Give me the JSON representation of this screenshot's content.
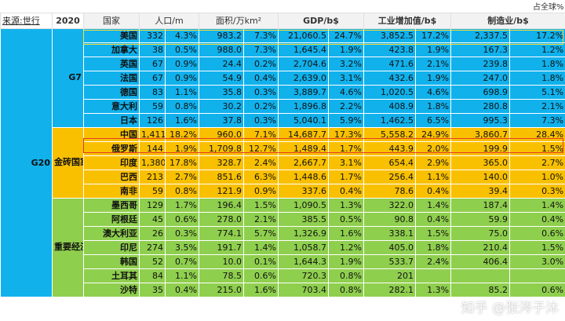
{
  "header": {
    "share_note": "占全球%",
    "source": "来源:世行",
    "year": "2020",
    "col_country": "国家",
    "col_pop": "人口/m",
    "col_area": "面积/万km²",
    "col_gdp": "GDP/b$",
    "col_industry": "工业增加值/b$",
    "col_mfg": "制造业/b$"
  },
  "groups": {
    "g20": "G20",
    "g7": "G7",
    "brics": "金砖国家",
    "major": "重要经济体"
  },
  "rows": [
    {
      "country": "美国",
      "pop": "332",
      "pop_pct": "4.3%",
      "area": "983.2",
      "area_pct": "7.3%",
      "gdp": "21,060.5",
      "gdp_pct": "24.7%",
      "ind": "3,852.5",
      "ind_pct": "17.2%",
      "mfg": "2,337.5",
      "mfg_pct": "17.2%"
    },
    {
      "country": "加拿大",
      "pop": "38",
      "pop_pct": "0.5%",
      "area": "988.0",
      "area_pct": "7.3%",
      "gdp": "1,645.4",
      "gdp_pct": "1.9%",
      "ind": "423.8",
      "ind_pct": "1.9%",
      "mfg": "167.3",
      "mfg_pct": "1.2%"
    },
    {
      "country": "英国",
      "pop": "67",
      "pop_pct": "0.9%",
      "area": "24.4",
      "area_pct": "0.2%",
      "gdp": "2,704.6",
      "gdp_pct": "3.2%",
      "ind": "471.6",
      "ind_pct": "2.1%",
      "mfg": "239.8",
      "mfg_pct": "1.8%"
    },
    {
      "country": "法国",
      "pop": "67",
      "pop_pct": "0.9%",
      "area": "54.9",
      "area_pct": "0.4%",
      "gdp": "2,639.0",
      "gdp_pct": "3.1%",
      "ind": "432.6",
      "ind_pct": "1.9%",
      "mfg": "247.0",
      "mfg_pct": "1.8%"
    },
    {
      "country": "德国",
      "pop": "83",
      "pop_pct": "1.1%",
      "area": "35.8",
      "area_pct": "0.3%",
      "gdp": "3,889.7",
      "gdp_pct": "4.6%",
      "ind": "1,020.5",
      "ind_pct": "4.6%",
      "mfg": "698.9",
      "mfg_pct": "5.1%"
    },
    {
      "country": "意大利",
      "pop": "59",
      "pop_pct": "0.8%",
      "area": "30.2",
      "area_pct": "0.2%",
      "gdp": "1,896.8",
      "gdp_pct": "2.2%",
      "ind": "408.9",
      "ind_pct": "1.8%",
      "mfg": "280.8",
      "mfg_pct": "2.1%"
    },
    {
      "country": "日本",
      "pop": "126",
      "pop_pct": "1.6%",
      "area": "37.8",
      "area_pct": "0.3%",
      "gdp": "5,040.1",
      "gdp_pct": "5.9%",
      "ind": "1,462.5",
      "ind_pct": "6.5%",
      "mfg": "995.3",
      "mfg_pct": "7.3%"
    },
    {
      "country": "中国",
      "pop": "1,411",
      "pop_pct": "18.2%",
      "area": "960.0",
      "area_pct": "7.1%",
      "gdp": "14,687.7",
      "gdp_pct": "17.3%",
      "ind": "5,558.2",
      "ind_pct": "24.9%",
      "mfg": "3,860.7",
      "mfg_pct": "28.4%"
    },
    {
      "country": "俄罗斯",
      "pop": "144",
      "pop_pct": "1.9%",
      "area": "1,709.8",
      "area_pct": "12.7%",
      "gdp": "1,489.4",
      "gdp_pct": "1.7%",
      "ind": "443.9",
      "ind_pct": "2.0%",
      "mfg": "199.9",
      "mfg_pct": "1.5%"
    },
    {
      "country": "印度",
      "pop": "1,380",
      "pop_pct": "17.8%",
      "area": "328.7",
      "area_pct": "2.4%",
      "gdp": "2,667.7",
      "gdp_pct": "3.1%",
      "ind": "654.4",
      "ind_pct": "2.9%",
      "mfg": "365.0",
      "mfg_pct": "2.7%"
    },
    {
      "country": "巴西",
      "pop": "213",
      "pop_pct": "2.7%",
      "area": "851.6",
      "area_pct": "6.3%",
      "gdp": "1,448.6",
      "gdp_pct": "1.7%",
      "ind": "256.4",
      "ind_pct": "1.1%",
      "mfg": "140.0",
      "mfg_pct": "1.0%"
    },
    {
      "country": "南非",
      "pop": "59",
      "pop_pct": "0.8%",
      "area": "121.9",
      "area_pct": "0.9%",
      "gdp": "337.6",
      "gdp_pct": "0.4%",
      "ind": "78.6",
      "ind_pct": "0.4%",
      "mfg": "39.4",
      "mfg_pct": "0.3%"
    },
    {
      "country": "墨西哥",
      "pop": "129",
      "pop_pct": "1.7%",
      "area": "196.4",
      "area_pct": "1.5%",
      "gdp": "1,090.5",
      "gdp_pct": "1.3%",
      "ind": "322.0",
      "ind_pct": "1.4%",
      "mfg": "187.4",
      "mfg_pct": "1.4%"
    },
    {
      "country": "阿根廷",
      "pop": "45",
      "pop_pct": "0.6%",
      "area": "278.0",
      "area_pct": "2.1%",
      "gdp": "385.5",
      "gdp_pct": "0.5%",
      "ind": "90.8",
      "ind_pct": "0.4%",
      "mfg": "59.9",
      "mfg_pct": "0.4%"
    },
    {
      "country": "澳大利亚",
      "pop": "26",
      "pop_pct": "0.3%",
      "area": "774.1",
      "area_pct": "5.7%",
      "gdp": "1,326.9",
      "gdp_pct": "1.6%",
      "ind": "338.1",
      "ind_pct": "1.5%",
      "mfg": "75.0",
      "mfg_pct": "0.6%"
    },
    {
      "country": "印尼",
      "pop": "274",
      "pop_pct": "3.5%",
      "area": "191.7",
      "area_pct": "1.4%",
      "gdp": "1,058.7",
      "gdp_pct": "1.2%",
      "ind": "405.0",
      "ind_pct": "1.8%",
      "mfg": "210.4",
      "mfg_pct": "1.5%"
    },
    {
      "country": "韩国",
      "pop": "52",
      "pop_pct": "0.7%",
      "area": "10.0",
      "area_pct": "0.1%",
      "gdp": "1,644.3",
      "gdp_pct": "1.9%",
      "ind": "533.7",
      "ind_pct": "2.4%",
      "mfg": "406.4",
      "mfg_pct": "3.0%"
    },
    {
      "country": "土耳其",
      "pop": "84",
      "pop_pct": "1.1%",
      "area": "78.5",
      "area_pct": "0.6%",
      "gdp": "720.3",
      "gdp_pct": "0.8%",
      "ind": "201",
      "ind_pct": "",
      "mfg": "",
      "mfg_pct": ""
    },
    {
      "country": "沙特",
      "pop": "35",
      "pop_pct": "0.4%",
      "area": "215.0",
      "area_pct": "1.6%",
      "gdp": "703.4",
      "gdp_pct": "0.8%",
      "ind": "282.1",
      "ind_pct": "1.3%",
      "mfg": "85.2",
      "mfg_pct": "0.6%"
    }
  ],
  "watermark": "知乎 @张涔子沐",
  "colors": {
    "g20": "#173660",
    "g7": "#11b1ec",
    "brics": "#f9c000",
    "major": "#8fcf4e",
    "usa_highlight": "#f3e036",
    "china_highlight": "#e23b2a"
  }
}
